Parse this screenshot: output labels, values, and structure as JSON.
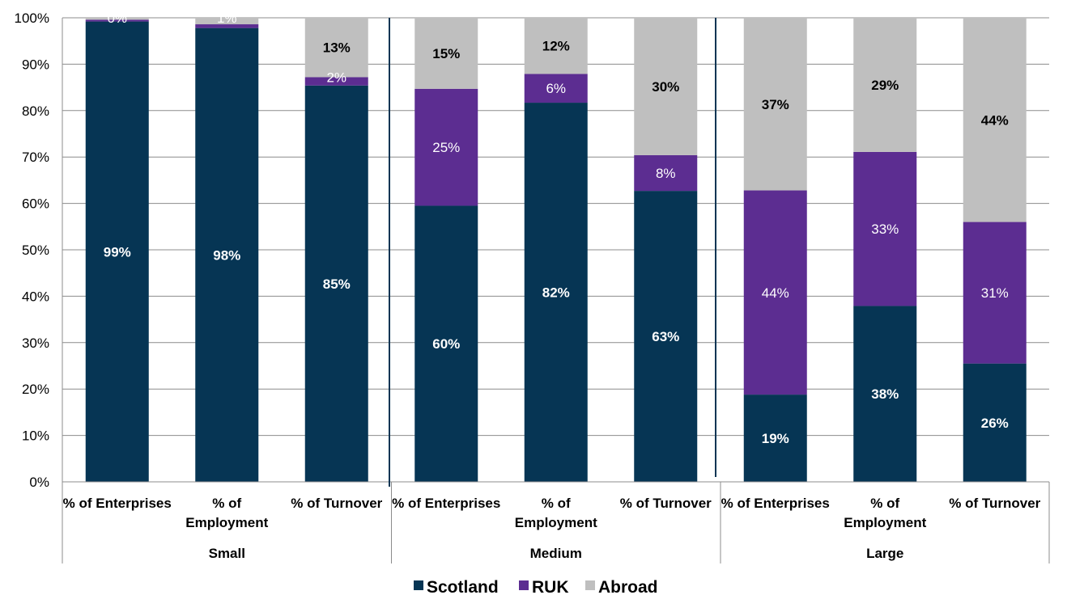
{
  "chart_data": {
    "type": "bar",
    "stacked": true,
    "y_max": 100,
    "y_ticks": [
      "0%",
      "10%",
      "20%",
      "30%",
      "40%",
      "50%",
      "60%",
      "70%",
      "80%",
      "90%",
      "100%"
    ],
    "grid": true,
    "legend_position": "bottom",
    "groups": [
      "Small",
      "Medium",
      "Large"
    ],
    "categories": [
      [
        "% of Enterprises"
      ],
      [
        "% of",
        "Employment"
      ],
      [
        "% of Turnover"
      ],
      [
        "% of Enterprises"
      ],
      [
        "% of",
        "Employment"
      ],
      [
        "% of Turnover"
      ],
      [
        "% of Enterprises"
      ],
      [
        "% of",
        "Employment"
      ],
      [
        "% of Turnover"
      ]
    ],
    "series": [
      {
        "name": "Scotland",
        "color": "#063554",
        "values": [
          99.2,
          97.8,
          85.4,
          59.5,
          81.7,
          62.7,
          18.8,
          37.9,
          25.5
        ],
        "labels": [
          "99%",
          "98%",
          "85%",
          "60%",
          "82%",
          "63%",
          "19%",
          "38%",
          "26%"
        ]
      },
      {
        "name": "RUK",
        "color": "#5c2d91",
        "values": [
          0.4,
          0.8,
          1.8,
          25.2,
          6.2,
          7.7,
          44.0,
          33.2,
          30.5
        ],
        "labels": [
          "",
          "",
          "2%",
          "25%",
          "6%",
          "8%",
          "44%",
          "33%",
          "31%"
        ]
      },
      {
        "name": "Abroad",
        "color": "#bfbfbf",
        "values": [
          0.4,
          1.4,
          12.8,
          15.3,
          12.1,
          29.6,
          37.2,
          28.9,
          44.0
        ],
        "labels": [
          "0%",
          "1%",
          "13%",
          "15%",
          "12%",
          "30%",
          "37%",
          "29%",
          "44%"
        ]
      }
    ]
  }
}
